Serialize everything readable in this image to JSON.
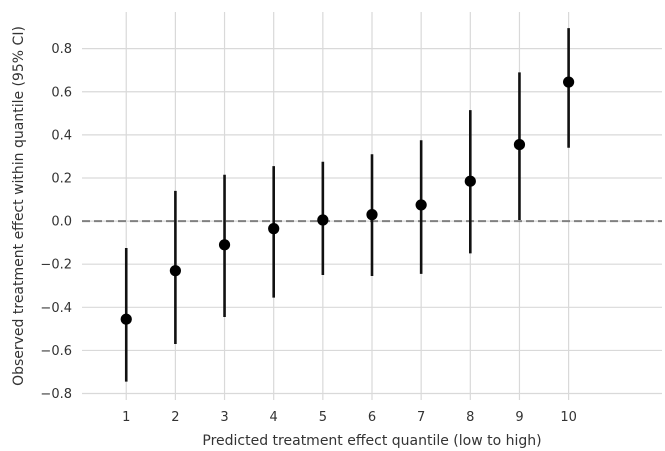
{
  "chart_data": {
    "type": "scatter",
    "title": "",
    "xlabel": "Predicted treatment effect quantile (low to high)",
    "ylabel": "Observed treatment effect within quantile (95% CI)",
    "x": [
      1,
      2,
      3,
      4,
      5,
      6,
      7,
      8,
      9,
      10
    ],
    "x_tick_labels": [
      "1",
      "2",
      "3",
      "4",
      "5",
      "6",
      "7",
      "8",
      "9",
      "10"
    ],
    "y": [
      -0.455,
      -0.23,
      -0.11,
      -0.035,
      0.005,
      0.03,
      0.075,
      0.185,
      0.355,
      0.645
    ],
    "ci_lower": [
      -0.745,
      -0.57,
      -0.445,
      -0.355,
      -0.25,
      -0.255,
      -0.245,
      -0.15,
      0.005,
      0.34
    ],
    "ci_upper": [
      -0.125,
      0.14,
      0.215,
      0.255,
      0.275,
      0.31,
      0.375,
      0.515,
      0.69,
      0.895
    ],
    "xlim": [
      0.1,
      11.9
    ],
    "ylim": [
      -0.83,
      0.97
    ],
    "y_ticks": [
      -0.8,
      -0.6,
      -0.4,
      -0.2,
      0.0,
      0.2,
      0.4,
      0.6,
      0.8
    ],
    "y_tick_labels": [
      "−0.8",
      "−0.6",
      "−0.4",
      "−0.2",
      "0.0",
      "0.2",
      "0.4",
      "0.6",
      "0.8"
    ],
    "reference_line": {
      "y": 0.0,
      "style": "dashed",
      "color": "#808080"
    },
    "grid": true,
    "marker_color": "#000000",
    "errorbar_color": "#111111"
  }
}
